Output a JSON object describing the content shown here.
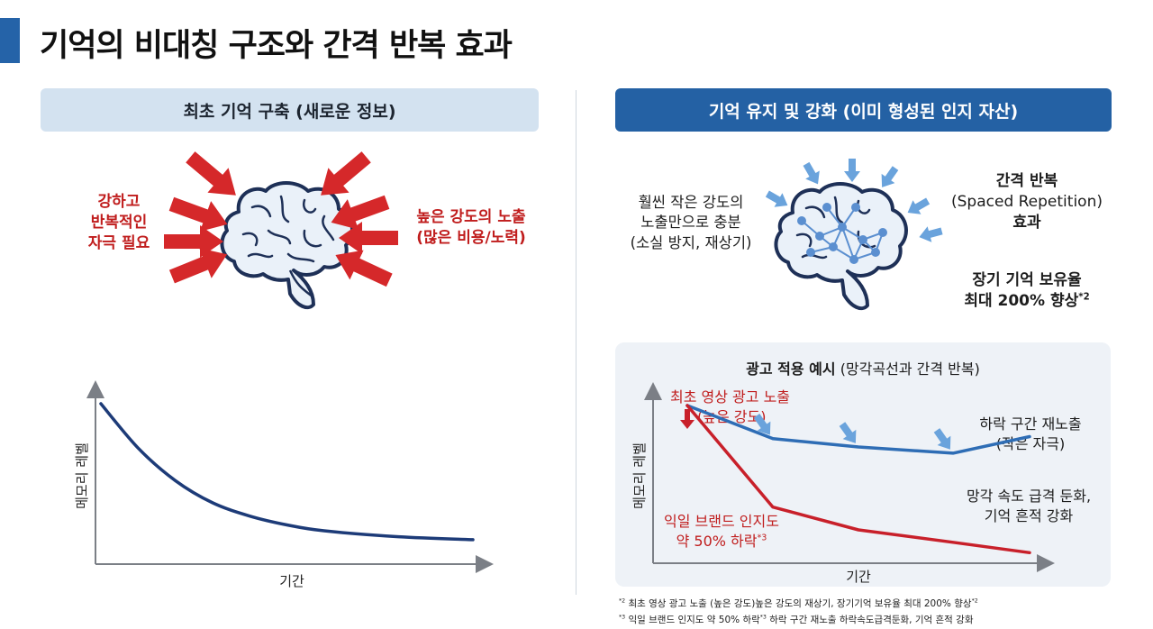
{
  "title": "기억의 비대칭 구조와 간격 반복 효과",
  "left": {
    "header": "최초 기억 구축 (새로운 정보)",
    "left_note": [
      "강하고",
      "반복적인",
      "자극 필요"
    ],
    "right_note": [
      "높은 강도의 노출",
      "(많은 비용/노력)"
    ],
    "chart": {
      "ylabel": "메모리 레벨",
      "xlabel": "기간"
    }
  },
  "right": {
    "header": "기억 유지 및 강화 (이미 형성된 인지 자산)",
    "left_note": [
      "훨씬 작은 강도의",
      "노출만으로 충분",
      "(소실 방지, 재상기)"
    ],
    "spaced": [
      "간격 반복",
      "(Spaced Repetition)",
      "효과"
    ],
    "retention": [
      "장기 기억 보유율",
      "최대 200% 향상"
    ],
    "retention_sup": "*2",
    "panel": {
      "title_bold": "광고 적용 예시",
      "title_rest": "(망각곡선과 간격 반복)",
      "first_ad": [
        "최초 영상 광고 노출",
        "(높은 강도)"
      ],
      "reexpose": [
        "하락 구간 재노출",
        "(작은 자극)"
      ],
      "forget": [
        "망각 속도 급격 둔화,",
        "기억 흔적 강화"
      ],
      "brand": [
        "익일 브랜드 인지도",
        "약 50% 하락"
      ],
      "brand_sup": "*3",
      "ylabel": "메모리 레벨",
      "xlabel": "기간"
    }
  },
  "footnotes": {
    "fn1_sup": "*2",
    "fn1": " 최초 영상 광고 노출 (높은 강도)높은 강도의 재상기, 장기기억 보유율 최대 200% 향상",
    "fn1_end": "*2",
    "fn2_sup": "*3",
    "fn2_a": " 익일 브랜드 인지도 약 50% 하락",
    "fn2_mid": "*3",
    "fn2_b": " 하락 구간 재노출 하락속도급격둔화, 기억 흔적 강화"
  },
  "chart_data": [
    {
      "type": "line",
      "xlabel": "기간",
      "ylabel": "메모리 레벨",
      "series": [
        {
          "x": [
            0,
            1,
            2,
            3,
            4,
            5,
            6,
            8,
            10
          ],
          "values": [
            100,
            70,
            48,
            33,
            24,
            18,
            14,
            10,
            8
          ]
        }
      ]
    },
    {
      "type": "line",
      "xlabel": "기간",
      "ylabel": "메모리 레벨",
      "series": [
        {
          "name": "하락 구간 재노출",
          "color": "#2e6db5",
          "x": [
            0,
            1,
            2,
            3,
            4
          ],
          "values": [
            100,
            84,
            80,
            77,
            85
          ]
        },
        {
          "name": "익일 브랜드 인지도 약 50% 하락",
          "color": "#c8202a",
          "x": [
            0,
            1,
            2,
            3,
            4
          ],
          "values": [
            100,
            51,
            40,
            34,
            29
          ]
        }
      ],
      "reexposure_points": [
        1,
        2,
        3
      ]
    }
  ],
  "colors": {
    "accent": "#2461a4",
    "red": "#c01d1d",
    "blue_line": "#2e6db5",
    "navy_line": "#1d3b78"
  }
}
